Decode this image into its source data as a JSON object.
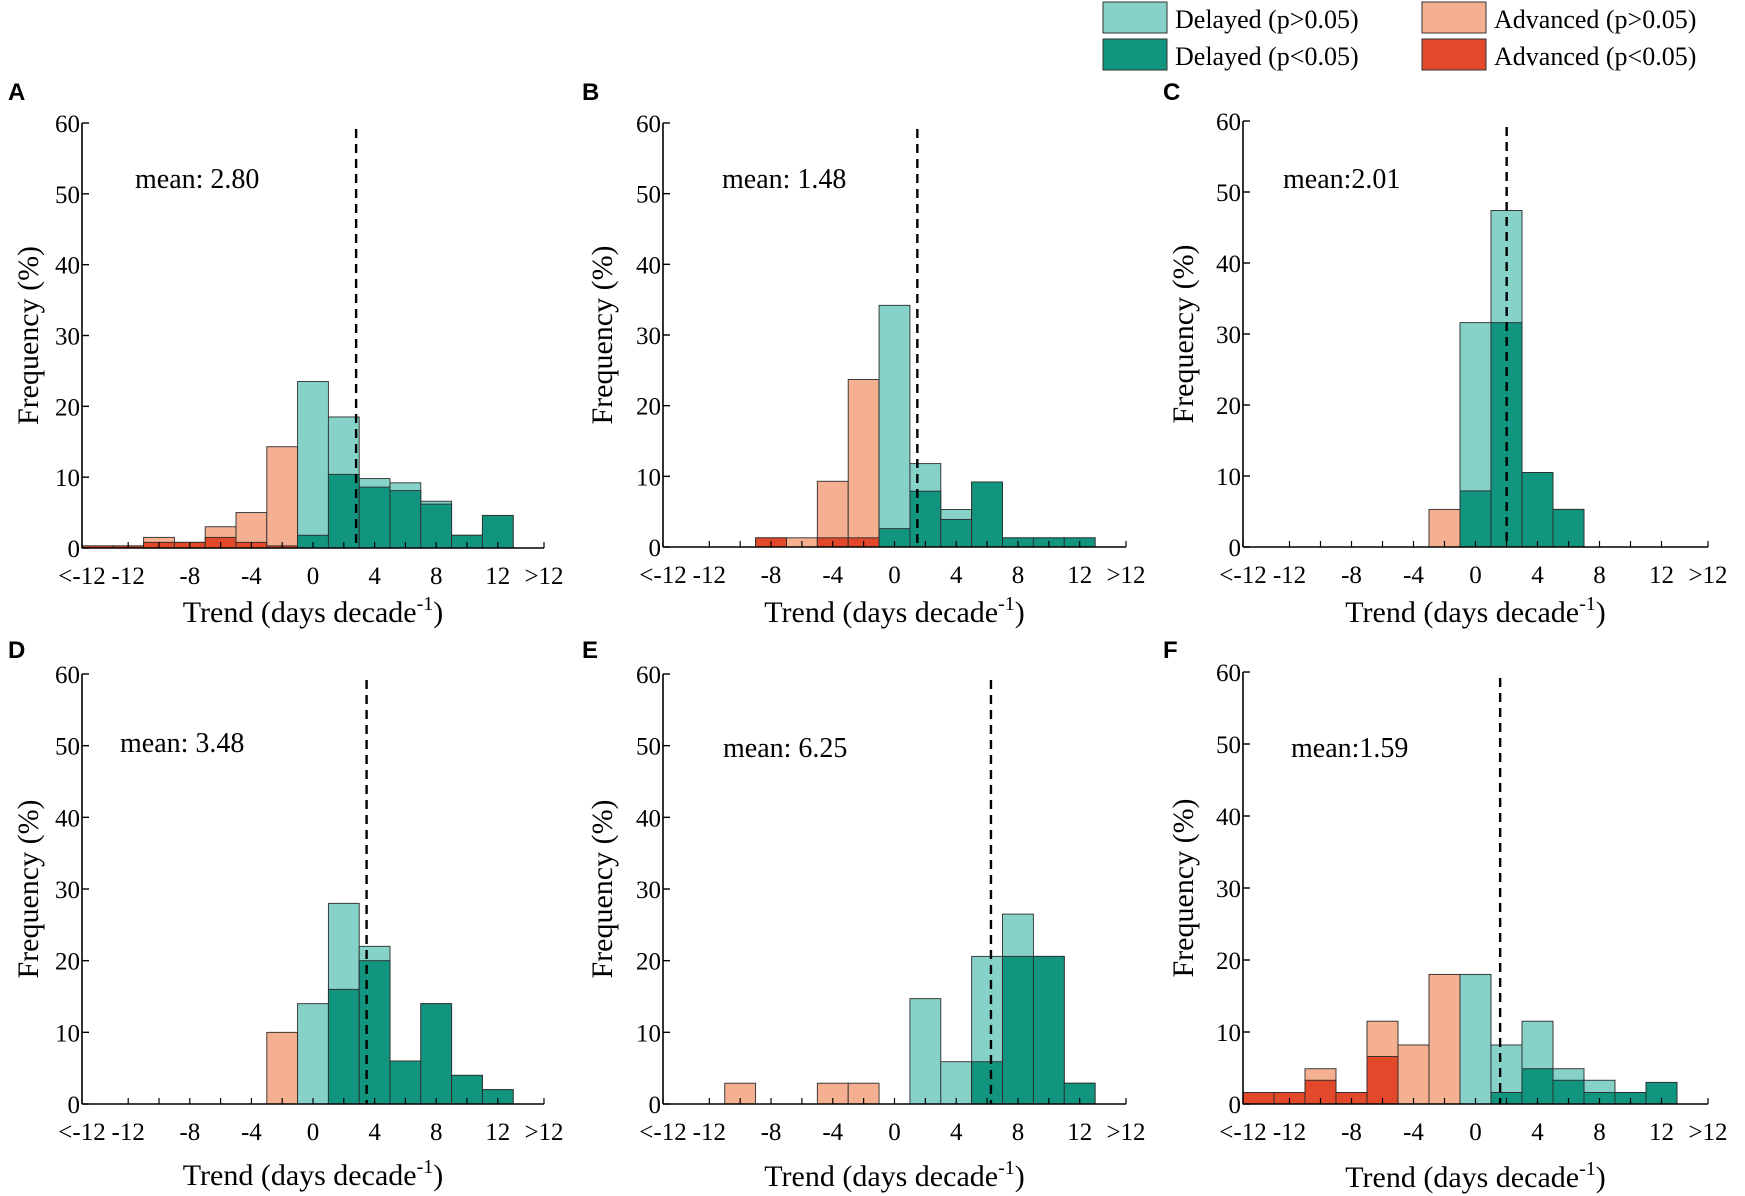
{
  "colors": {
    "delayed_ns": "#86d2c9",
    "delayed_sig": "#11957f",
    "advanced_ns": "#f5b092",
    "advanced_sig": "#e2482a",
    "axis": "#000000"
  },
  "legend": {
    "items": [
      {
        "label": "Delayed (p>0.05)",
        "color_key": "delayed_ns"
      },
      {
        "label": "Advanced (p>0.05)",
        "color_key": "advanced_ns"
      },
      {
        "label": "Delayed (p<0.05)",
        "color_key": "delayed_sig"
      },
      {
        "label": "Advanced (p<0.05)",
        "color_key": "advanced_sig"
      }
    ]
  },
  "chart_data": [
    {
      "panel": "A",
      "type": "bar",
      "mean_label": "mean: 2.80",
      "mean": 2.8,
      "xlabel": "Trend (days decade",
      "xlabel_sup": "-1",
      "xlabel_close": ")",
      "ylabel": "Frequency (%)",
      "ylim": [
        0,
        60
      ],
      "xlim": [
        -15,
        15
      ],
      "yticks": [
        0,
        10,
        20,
        30,
        40,
        50,
        60
      ],
      "xtick_labels": [
        {
          "pos": -15,
          "label": "<-12"
        },
        {
          "pos": -12,
          "label": "-12"
        },
        {
          "pos": -8,
          "label": "-8"
        },
        {
          "pos": -4,
          "label": "-4"
        },
        {
          "pos": 0,
          "label": "0"
        },
        {
          "pos": 4,
          "label": "4"
        },
        {
          "pos": 8,
          "label": "8"
        },
        {
          "pos": 12,
          "label": "12"
        },
        {
          "pos": 15,
          "label": ">12"
        }
      ],
      "bins": [
        -14,
        -12,
        -10,
        -8,
        -6,
        -4,
        -2,
        0,
        2,
        4,
        6,
        8,
        10,
        12,
        14
      ],
      "series": [
        {
          "name": "Advanced (p>0.05)",
          "color_key": "advanced_ns",
          "values": [
            0.3,
            0.3,
            1.5,
            0.8,
            3.0,
            5.0,
            14.3,
            0,
            0,
            0,
            0,
            0,
            0,
            0,
            0
          ]
        },
        {
          "name": "Advanced (p<0.05)",
          "color_key": "advanced_sig",
          "values": [
            0.3,
            0.3,
            0.8,
            0.8,
            1.5,
            0.8,
            0.3,
            0,
            0,
            0,
            0,
            0,
            0,
            0,
            0
          ]
        },
        {
          "name": "Delayed (p>0.05)",
          "color_key": "delayed_ns",
          "values": [
            0,
            0,
            0,
            0,
            0,
            0,
            0,
            23.5,
            18.5,
            9.8,
            9.2,
            6.6,
            1.8,
            4.6,
            0
          ]
        },
        {
          "name": "Delayed (p<0.05)",
          "color_key": "delayed_sig",
          "values": [
            0,
            0,
            0,
            0,
            0,
            0,
            0,
            1.8,
            10.4,
            8.6,
            8.1,
            6.2,
            1.8,
            4.6,
            0
          ]
        }
      ]
    },
    {
      "panel": "B",
      "type": "bar",
      "mean_label": "mean: 1.48",
      "mean": 1.48,
      "xlabel": "Trend (days decade",
      "xlabel_sup": "-1",
      "xlabel_close": ")",
      "ylabel": "Frequency (%)",
      "ylim": [
        0,
        60
      ],
      "xlim": [
        -15,
        15
      ],
      "yticks": [
        0,
        10,
        20,
        30,
        40,
        50,
        60
      ],
      "xtick_labels": [
        {
          "pos": -15,
          "label": "<-12"
        },
        {
          "pos": -12,
          "label": "-12"
        },
        {
          "pos": -8,
          "label": "-8"
        },
        {
          "pos": -4,
          "label": "-4"
        },
        {
          "pos": 0,
          "label": "0"
        },
        {
          "pos": 4,
          "label": "4"
        },
        {
          "pos": 8,
          "label": "8"
        },
        {
          "pos": 12,
          "label": "12"
        },
        {
          "pos": 15,
          "label": ">12"
        }
      ],
      "bins": [
        -14,
        -12,
        -10,
        -8,
        -6,
        -4,
        -2,
        0,
        2,
        4,
        6,
        8,
        10,
        12,
        14
      ],
      "series": [
        {
          "name": "Advanced (p>0.05)",
          "color_key": "advanced_ns",
          "values": [
            0,
            0,
            0,
            1.3,
            1.3,
            9.3,
            23.7,
            0,
            0,
            0,
            0,
            0,
            0,
            0,
            0
          ]
        },
        {
          "name": "Advanced (p<0.05)",
          "color_key": "advanced_sig",
          "values": [
            0,
            0,
            0,
            1.3,
            0,
            1.3,
            1.3,
            0,
            0,
            0,
            0,
            0,
            0,
            0,
            0
          ]
        },
        {
          "name": "Delayed (p>0.05)",
          "color_key": "delayed_ns",
          "values": [
            0,
            0,
            0,
            0,
            0,
            0,
            0,
            34.2,
            11.8,
            5.3,
            9.2,
            1.3,
            1.3,
            1.3,
            0
          ]
        },
        {
          "name": "Delayed (p<0.05)",
          "color_key": "delayed_sig",
          "values": [
            0,
            0,
            0,
            0,
            0,
            0,
            0,
            2.6,
            7.9,
            3.9,
            9.2,
            1.3,
            1.3,
            1.3,
            0
          ]
        }
      ]
    },
    {
      "panel": "C",
      "type": "bar",
      "mean_label": "mean:2.01",
      "mean": 2.01,
      "xlabel": "Trend (days decade",
      "xlabel_sup": "-1",
      "xlabel_close": ")",
      "ylabel": "Frequency (%)",
      "ylim": [
        0,
        60
      ],
      "xlim": [
        -15,
        15
      ],
      "yticks": [
        0,
        10,
        20,
        30,
        40,
        50,
        60
      ],
      "xtick_labels": [
        {
          "pos": -15,
          "label": "<-12"
        },
        {
          "pos": -12,
          "label": "-12"
        },
        {
          "pos": -8,
          "label": "-8"
        },
        {
          "pos": -4,
          "label": "-4"
        },
        {
          "pos": 0,
          "label": "0"
        },
        {
          "pos": 4,
          "label": "4"
        },
        {
          "pos": 8,
          "label": "8"
        },
        {
          "pos": 12,
          "label": "12"
        },
        {
          "pos": 15,
          "label": ">12"
        }
      ],
      "bins": [
        -14,
        -12,
        -10,
        -8,
        -6,
        -4,
        -2,
        0,
        2,
        4,
        6,
        8,
        10,
        12,
        14
      ],
      "series": [
        {
          "name": "Advanced (p>0.05)",
          "color_key": "advanced_ns",
          "values": [
            0,
            0,
            0,
            0,
            0,
            0,
            5.3,
            0,
            0,
            0,
            0,
            0,
            0,
            0,
            0
          ]
        },
        {
          "name": "Advanced (p<0.05)",
          "color_key": "advanced_sig",
          "values": [
            0,
            0,
            0,
            0,
            0,
            0,
            0,
            0,
            0,
            0,
            0,
            0,
            0,
            0,
            0
          ]
        },
        {
          "name": "Delayed (p>0.05)",
          "color_key": "delayed_ns",
          "values": [
            0,
            0,
            0,
            0,
            0,
            0,
            0,
            31.6,
            47.4,
            10.5,
            5.3,
            0,
            0,
            0,
            0
          ]
        },
        {
          "name": "Delayed (p<0.05)",
          "color_key": "delayed_sig",
          "values": [
            0,
            0,
            0,
            0,
            0,
            0,
            0,
            7.9,
            31.6,
            10.5,
            5.3,
            0,
            0,
            0,
            0
          ]
        }
      ]
    },
    {
      "panel": "D",
      "type": "bar",
      "mean_label": "mean: 3.48",
      "mean": 3.48,
      "xlabel": "Trend (days decade",
      "xlabel_sup": "-1",
      "xlabel_close": ")",
      "ylabel": "Frequency (%)",
      "ylim": [
        0,
        60
      ],
      "xlim": [
        -15,
        15
      ],
      "yticks": [
        0,
        10,
        20,
        30,
        40,
        50,
        60
      ],
      "xtick_labels": [
        {
          "pos": -15,
          "label": "<-12"
        },
        {
          "pos": -12,
          "label": "-12"
        },
        {
          "pos": -8,
          "label": "-8"
        },
        {
          "pos": -4,
          "label": "-4"
        },
        {
          "pos": 0,
          "label": "0"
        },
        {
          "pos": 4,
          "label": "4"
        },
        {
          "pos": 8,
          "label": "8"
        },
        {
          "pos": 12,
          "label": "12"
        },
        {
          "pos": 15,
          "label": ">12"
        }
      ],
      "bins": [
        -14,
        -12,
        -10,
        -8,
        -6,
        -4,
        -2,
        0,
        2,
        4,
        6,
        8,
        10,
        12,
        14
      ],
      "series": [
        {
          "name": "Advanced (p>0.05)",
          "color_key": "advanced_ns",
          "values": [
            0,
            0,
            0,
            0,
            0,
            0,
            10.0,
            0,
            0,
            0,
            0,
            0,
            0,
            0,
            0
          ]
        },
        {
          "name": "Advanced (p<0.05)",
          "color_key": "advanced_sig",
          "values": [
            0,
            0,
            0,
            0,
            0,
            0,
            0,
            0,
            0,
            0,
            0,
            0,
            0,
            0,
            0
          ]
        },
        {
          "name": "Delayed (p>0.05)",
          "color_key": "delayed_ns",
          "values": [
            0,
            0,
            0,
            0,
            0,
            0,
            0,
            14.0,
            28.0,
            22.0,
            6.0,
            14.0,
            4.0,
            2.0,
            0
          ]
        },
        {
          "name": "Delayed (p<0.05)",
          "color_key": "delayed_sig",
          "values": [
            0,
            0,
            0,
            0,
            0,
            0,
            0,
            0,
            16.0,
            20.0,
            6.0,
            14.0,
            4.0,
            2.0,
            0
          ]
        }
      ]
    },
    {
      "panel": "E",
      "type": "bar",
      "mean_label": "mean: 6.25",
      "mean": 6.25,
      "xlabel": "Trend (days decade",
      "xlabel_sup": "-1",
      "xlabel_close": ")",
      "ylabel": "Frequency (%)",
      "ylim": [
        0,
        60
      ],
      "xlim": [
        -15,
        15
      ],
      "yticks": [
        0,
        10,
        20,
        30,
        40,
        50,
        60
      ],
      "xtick_labels": [
        {
          "pos": -15,
          "label": "<-12"
        },
        {
          "pos": -12,
          "label": "-12"
        },
        {
          "pos": -8,
          "label": "-8"
        },
        {
          "pos": -4,
          "label": "-4"
        },
        {
          "pos": 0,
          "label": "0"
        },
        {
          "pos": 4,
          "label": "4"
        },
        {
          "pos": 8,
          "label": "8"
        },
        {
          "pos": 12,
          "label": "12"
        },
        {
          "pos": 15,
          "label": ">12"
        }
      ],
      "bins": [
        -14,
        -12,
        -10,
        -8,
        -6,
        -4,
        -2,
        0,
        2,
        4,
        6,
        8,
        10,
        12,
        14
      ],
      "series": [
        {
          "name": "Advanced (p>0.05)",
          "color_key": "advanced_ns",
          "values": [
            0,
            0,
            2.9,
            0,
            0,
            2.9,
            2.9,
            0,
            0,
            0,
            0,
            0,
            0,
            0,
            0
          ]
        },
        {
          "name": "Advanced (p<0.05)",
          "color_key": "advanced_sig",
          "values": [
            0,
            0,
            0,
            0,
            0,
            0,
            0,
            0,
            0,
            0,
            0,
            0,
            0,
            0,
            0
          ]
        },
        {
          "name": "Delayed (p>0.05)",
          "color_key": "delayed_ns",
          "values": [
            0,
            0,
            0,
            0,
            0,
            0,
            0,
            0,
            14.7,
            5.9,
            20.6,
            26.5,
            20.6,
            2.9,
            0
          ]
        },
        {
          "name": "Delayed (p<0.05)",
          "color_key": "delayed_sig",
          "values": [
            0,
            0,
            0,
            0,
            0,
            0,
            0,
            0,
            0,
            0,
            5.9,
            20.6,
            20.6,
            2.9,
            0
          ]
        }
      ]
    },
    {
      "panel": "F",
      "type": "bar",
      "mean_label": "mean:1.59",
      "mean": 1.59,
      "xlabel": "Trend (days decade",
      "xlabel_sup": "-1",
      "xlabel_close": ")",
      "ylabel": "Frequency (%)",
      "ylim": [
        0,
        60
      ],
      "xlim": [
        -15,
        15
      ],
      "yticks": [
        0,
        10,
        20,
        30,
        40,
        50,
        60
      ],
      "xtick_labels": [
        {
          "pos": -15,
          "label": "<-12"
        },
        {
          "pos": -12,
          "label": "-12"
        },
        {
          "pos": -8,
          "label": "-8"
        },
        {
          "pos": -4,
          "label": "-4"
        },
        {
          "pos": 0,
          "label": "0"
        },
        {
          "pos": 4,
          "label": "4"
        },
        {
          "pos": 8,
          "label": "8"
        },
        {
          "pos": 12,
          "label": "12"
        },
        {
          "pos": 15,
          "label": ">12"
        }
      ],
      "bins": [
        -14,
        -12,
        -10,
        -8,
        -6,
        -4,
        -2,
        0,
        2,
        4,
        6,
        8,
        10,
        12,
        14
      ],
      "series": [
        {
          "name": "Advanced (p>0.05)",
          "color_key": "advanced_ns",
          "values": [
            1.6,
            1.6,
            4.9,
            1.6,
            11.5,
            8.2,
            18.0,
            0,
            0,
            0,
            0,
            0,
            0,
            0,
            0
          ]
        },
        {
          "name": "Advanced (p<0.05)",
          "color_key": "advanced_sig",
          "values": [
            1.6,
            1.6,
            3.3,
            1.6,
            6.6,
            0,
            0,
            0,
            0,
            0,
            0,
            0,
            0,
            0,
            0
          ]
        },
        {
          "name": "Delayed (p>0.05)",
          "color_key": "delayed_ns",
          "values": [
            0,
            0,
            0,
            0,
            0,
            0,
            0,
            18.0,
            8.2,
            11.5,
            4.9,
            3.3,
            1.6,
            3.0,
            0
          ]
        },
        {
          "name": "Delayed (p<0.05)",
          "color_key": "delayed_sig",
          "values": [
            0,
            0,
            0,
            0,
            0,
            0,
            0,
            0,
            1.6,
            4.9,
            3.3,
            1.6,
            1.6,
            3.0,
            0
          ]
        }
      ]
    }
  ]
}
